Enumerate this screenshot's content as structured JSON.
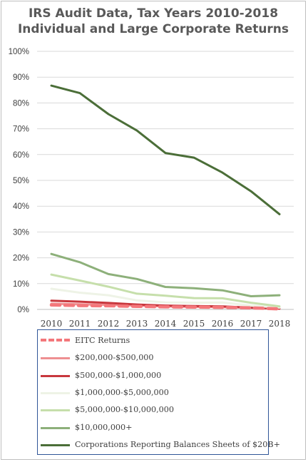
{
  "chart_data": {
    "type": "line",
    "title_lines": [
      "IRS Audit Data, Tax Years 2010-2018",
      "Individual and Large Corporate Returns"
    ],
    "xlabel": "",
    "ylabel": "",
    "x": [
      "2010",
      "2011",
      "2012",
      "2013",
      "2014",
      "2015",
      "2016",
      "2017",
      "2018"
    ],
    "ylim": [
      0,
      100
    ],
    "yticks": [
      "0%",
      "10%",
      "20%",
      "30%",
      "40%",
      "50%",
      "60%",
      "70%",
      "80%",
      "90%",
      "100%"
    ],
    "grid": true,
    "legend_position": "bottom",
    "series": [
      {
        "name": "EITC Returns",
        "color": "#f4777b",
        "style": "dashed",
        "width": 4.5,
        "values": [
          1.7,
          1.5,
          1.4,
          1.2,
          1.0,
          0.9,
          0.8,
          0.6,
          0.2
        ]
      },
      {
        "name": "$200,000-$500,000",
        "color": "#ee8f91",
        "style": "solid",
        "width": 3,
        "values": [
          2.2,
          2.0,
          1.8,
          1.5,
          1.2,
          1.0,
          0.9,
          0.6,
          0.2
        ]
      },
      {
        "name": "$500,000-$1,000,000",
        "color": "#c8373d",
        "style": "solid",
        "width": 3,
        "values": [
          3.4,
          3.0,
          2.5,
          1.9,
          1.5,
          1.3,
          1.2,
          0.7,
          0.4
        ]
      },
      {
        "name": "$1,000,000-$5,000,000",
        "color": "#eef3e6",
        "style": "solid",
        "width": 3,
        "values": [
          8.0,
          6.5,
          5.5,
          3.5,
          2.7,
          2.6,
          2.7,
          1.5,
          0.7
        ]
      },
      {
        "name": "$5,000,000-$10,000,000",
        "color": "#c6dfab",
        "style": "solid",
        "width": 3,
        "values": [
          13.5,
          11.2,
          8.8,
          6.1,
          5.3,
          4.4,
          4.3,
          2.6,
          1.2
        ]
      },
      {
        "name": "$10,000,000+",
        "color": "#8db07a",
        "style": "solid",
        "width": 3,
        "values": [
          21.5,
          18.3,
          13.7,
          11.8,
          8.7,
          8.2,
          7.4,
          5.1,
          5.5
        ]
      },
      {
        "name": "Corporations Reporting Balances Sheets of $20B+",
        "color": "#4b6e38",
        "style": "solid",
        "width": 3,
        "values": [
          86.7,
          83.8,
          75.7,
          69.3,
          60.6,
          58.8,
          53.0,
          45.8,
          36.9
        ]
      }
    ]
  }
}
